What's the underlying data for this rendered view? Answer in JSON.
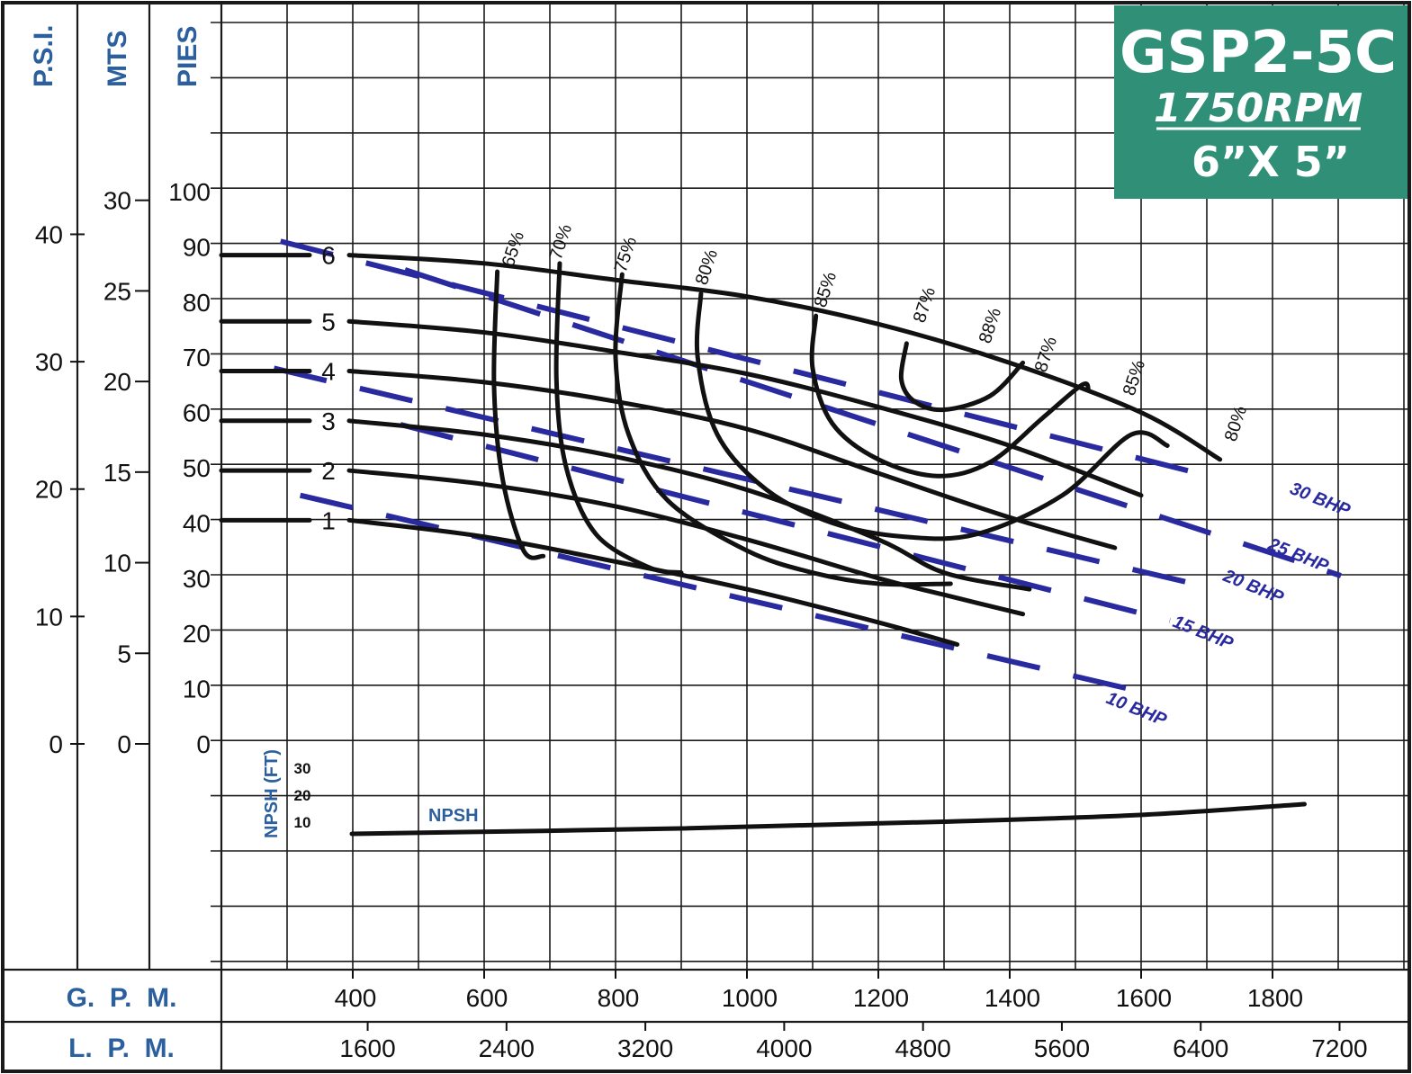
{
  "chart_data": {
    "type": "line",
    "title": "GSP2-5C",
    "subtitle": "1750RPM",
    "size": "6”X 5”",
    "axes": {
      "y_psi": {
        "label": "P.S.I.",
        "ticks": [
          "40",
          "30",
          "20",
          "10",
          "0"
        ],
        "values": [
          40,
          30,
          20,
          10,
          0
        ]
      },
      "y_mts": {
        "label": "MTS",
        "ticks": [
          "30",
          "25",
          "20",
          "15",
          "10",
          "5",
          "0"
        ],
        "values": [
          30,
          25,
          20,
          15,
          10,
          5,
          0
        ]
      },
      "y_pies": {
        "label": "PIES",
        "ticks": [
          "100",
          "90",
          "80",
          "70",
          "60",
          "50",
          "40",
          "30",
          "20",
          "10",
          "0"
        ],
        "values": [
          100,
          90,
          80,
          70,
          60,
          50,
          40,
          30,
          20,
          10,
          0
        ],
        "ylim": [
          0,
          100
        ]
      },
      "x_gpm": {
        "label": "G.  P.  M.",
        "ticks": [
          "400",
          "600",
          "800",
          "1000",
          "1200",
          "1400",
          "1600",
          "1800"
        ],
        "values": [
          400,
          600,
          800,
          1000,
          1200,
          1400,
          1600,
          1800
        ],
        "xlim": [
          0,
          2100
        ]
      },
      "x_lpm": {
        "label": "L.  P.  M.",
        "ticks": [
          "1600",
          "2400",
          "3200",
          "4000",
          "4800",
          "5600",
          "6400",
          "7200"
        ],
        "values": [
          1600,
          2400,
          3200,
          4000,
          4800,
          5600,
          6400,
          7200
        ]
      },
      "npsh": {
        "label": "NPSH (FT)",
        "ticks": [
          "30",
          "20",
          "10"
        ],
        "values": [
          30,
          20,
          10
        ]
      }
    },
    "impeller_curves": [
      {
        "label": "6",
        "points": [
          [
            0,
            88.5
          ],
          [
            600,
            87
          ],
          [
            800,
            84
          ],
          [
            1000,
            81
          ],
          [
            1200,
            76
          ],
          [
            1400,
            69
          ],
          [
            1600,
            60
          ],
          [
            1720,
            51.5
          ]
        ]
      },
      {
        "label": "5",
        "points": [
          [
            0,
            76.5
          ],
          [
            600,
            74.5
          ],
          [
            800,
            71
          ],
          [
            1000,
            67
          ],
          [
            1200,
            61
          ],
          [
            1400,
            54
          ],
          [
            1600,
            45
          ]
        ]
      },
      {
        "label": "4",
        "points": [
          [
            0,
            67.5
          ],
          [
            600,
            65.5
          ],
          [
            800,
            62
          ],
          [
            1000,
            57
          ],
          [
            1200,
            49
          ],
          [
            1400,
            41
          ],
          [
            1560,
            35.5
          ]
        ]
      },
      {
        "label": "3",
        "points": [
          [
            0,
            58.5
          ],
          [
            600,
            56
          ],
          [
            800,
            52
          ],
          [
            1000,
            46
          ],
          [
            1200,
            37
          ],
          [
            1300,
            31
          ],
          [
            1430,
            28
          ]
        ]
      },
      {
        "label": "2",
        "points": [
          [
            0,
            49.5
          ],
          [
            600,
            47
          ],
          [
            800,
            43
          ],
          [
            1000,
            37
          ],
          [
            1200,
            30
          ],
          [
            1300,
            27
          ],
          [
            1420,
            23.5
          ]
        ]
      },
      {
        "label": "1",
        "points": [
          [
            0,
            40.5
          ],
          [
            600,
            37.5
          ],
          [
            800,
            33
          ],
          [
            1000,
            28
          ],
          [
            1200,
            22
          ],
          [
            1320,
            18
          ]
        ]
      }
    ],
    "efficiency_curves": [
      {
        "label": "65%",
        "points": [
          [
            620,
            85.5
          ],
          [
            615,
            65
          ],
          [
            628,
            48
          ],
          [
            660,
            35
          ],
          [
            690,
            34
          ]
        ]
      },
      {
        "label": "70%",
        "points": [
          [
            715,
            87
          ],
          [
            710,
            66
          ],
          [
            725,
            50
          ],
          [
            770,
            38
          ],
          [
            850,
            32
          ],
          [
            900,
            31
          ]
        ]
      },
      {
        "label": "75%",
        "points": [
          [
            810,
            85
          ],
          [
            800,
            70
          ],
          [
            820,
            56
          ],
          [
            880,
            44
          ],
          [
            1000,
            35
          ],
          [
            1100,
            31
          ],
          [
            1200,
            29
          ],
          [
            1310,
            29
          ]
        ]
      },
      {
        "label": "80%",
        "points": [
          [
            930,
            81.5
          ],
          [
            925,
            70
          ],
          [
            955,
            56
          ],
          [
            1030,
            46
          ],
          [
            1130,
            40
          ],
          [
            1240,
            37.5
          ],
          [
            1350,
            38
          ],
          [
            1480,
            45
          ],
          [
            1585,
            56
          ],
          [
            1640,
            54
          ]
        ]
      },
      {
        "label": "85%",
        "points": [
          [
            1105,
            77.5
          ],
          [
            1100,
            68
          ],
          [
            1130,
            58
          ],
          [
            1200,
            51.5
          ],
          [
            1290,
            48.5
          ],
          [
            1370,
            51
          ],
          [
            1450,
            59
          ],
          [
            1510,
            65
          ],
          [
            1520,
            64
          ]
        ]
      },
      {
        "label": "87%",
        "points": [
          [
            1243,
            72.5
          ],
          [
            1235,
            66
          ],
          [
            1255,
            62
          ],
          [
            1300,
            60.5
          ],
          [
            1370,
            63
          ],
          [
            1420,
            69
          ]
        ]
      },
      {
        "label": "88%",
        "points": []
      },
      {
        "label": "87%",
        "points": []
      },
      {
        "label": "85%",
        "points": []
      },
      {
        "label": "80%",
        "points": []
      }
    ],
    "bhp_lines": [
      {
        "label": "30 BHP",
        "points": [
          [
            290,
            91
          ],
          [
            1720,
            48
          ]
        ]
      },
      {
        "label": "25 BHP",
        "points": []
      },
      {
        "label": "20 BHP",
        "points": [
          [
            280,
            68
          ],
          [
            1680,
            29
          ]
        ]
      },
      {
        "label": "15 BHP",
        "points": []
      },
      {
        "label": "10 BHP",
        "points": [
          [
            320,
            45
          ],
          [
            1580,
            10
          ]
        ]
      }
    ],
    "npsh_curve": {
      "label": "NPSH",
      "points": [
        [
          300,
          10
        ],
        [
          800,
          12
        ],
        [
          1200,
          14.5
        ],
        [
          1500,
          17
        ],
        [
          1750,
          21
        ]
      ]
    }
  }
}
